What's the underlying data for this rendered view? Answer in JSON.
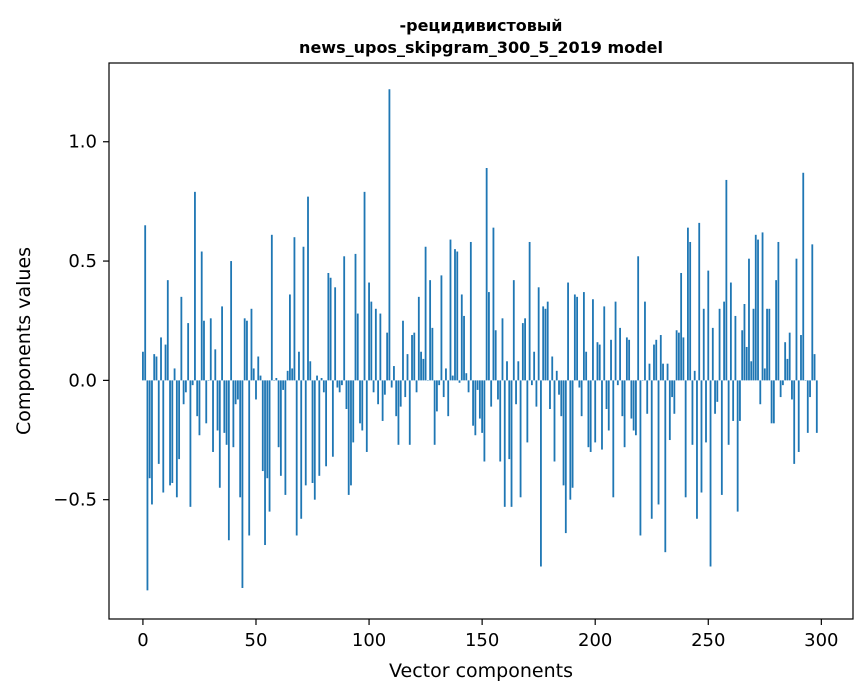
{
  "chart_data": {
    "type": "bar",
    "title_line1": "-рецидивистовый",
    "title_line2": "news_upos_skipgram_300_5_2019 model",
    "xlabel": "Vector components",
    "ylabel": "Components values",
    "xlim": [
      -15,
      314
    ],
    "ylim": [
      -1.0,
      1.33
    ],
    "xticks": [
      0,
      50,
      100,
      150,
      200,
      250,
      300
    ],
    "xtick_labels": [
      "0",
      "50",
      "100",
      "150",
      "200",
      "250",
      "300"
    ],
    "yticks": [
      -0.5,
      0.0,
      0.5,
      1.0
    ],
    "ytick_labels": [
      "−0.5",
      "0.0",
      "0.5",
      "1.0"
    ],
    "bar_color": "#1f77b4",
    "values": [
      0.12,
      0.65,
      -0.88,
      -0.41,
      -0.52,
      0.11,
      0.1,
      -0.35,
      0.18,
      -0.47,
      0.15,
      0.42,
      -0.44,
      -0.43,
      0.05,
      -0.49,
      -0.33,
      0.35,
      -0.1,
      -0.05,
      0.24,
      -0.53,
      -0.02,
      0.79,
      -0.15,
      -0.23,
      0.54,
      0.25,
      -0.18,
      0.0,
      0.26,
      -0.3,
      0.13,
      -0.21,
      -0.45,
      0.31,
      -0.22,
      -0.27,
      -0.67,
      0.5,
      -0.28,
      -0.1,
      -0.08,
      -0.49,
      -0.87,
      0.26,
      0.25,
      -0.65,
      0.3,
      0.05,
      -0.08,
      0.1,
      0.02,
      -0.38,
      -0.69,
      -0.41,
      -0.55,
      0.61,
      0.0,
      0.01,
      -0.28,
      -0.4,
      -0.04,
      -0.48,
      0.04,
      0.36,
      0.05,
      0.6,
      -0.65,
      0.12,
      -0.58,
      0.56,
      -0.44,
      0.77,
      0.08,
      -0.43,
      -0.5,
      0.02,
      -0.4,
      0.01,
      -0.05,
      -0.36,
      0.45,
      0.43,
      -0.32,
      0.39,
      -0.03,
      -0.05,
      -0.02,
      0.52,
      -0.12,
      -0.48,
      -0.44,
      -0.26,
      0.53,
      0.28,
      -0.18,
      -0.21,
      0.79,
      -0.3,
      0.41,
      0.33,
      -0.05,
      0.3,
      -0.1,
      0.28,
      -0.17,
      -0.06,
      0.2,
      1.22,
      -0.03,
      0.06,
      -0.15,
      -0.27,
      -0.11,
      0.25,
      -0.07,
      0.11,
      -0.27,
      0.19,
      0.2,
      -0.05,
      0.35,
      0.12,
      0.09,
      0.56,
      0.0,
      0.42,
      0.22,
      -0.27,
      -0.13,
      -0.02,
      0.44,
      -0.07,
      0.05,
      -0.15,
      0.59,
      0.02,
      0.55,
      0.54,
      -0.01,
      0.36,
      0.27,
      0.03,
      -0.05,
      0.58,
      -0.19,
      -0.23,
      -0.04,
      -0.16,
      -0.22,
      -0.34,
      0.89,
      0.37,
      -0.11,
      0.64,
      0.21,
      -0.08,
      -0.34,
      0.26,
      -0.53,
      0.08,
      -0.33,
      -0.53,
      0.42,
      -0.1,
      0.08,
      -0.49,
      0.24,
      0.26,
      -0.26,
      0.58,
      -0.02,
      0.12,
      -0.11,
      0.39,
      -0.78,
      0.31,
      0.3,
      0.33,
      -0.12,
      0.1,
      -0.34,
      0.04,
      -0.06,
      -0.15,
      -0.44,
      -0.64,
      0.41,
      -0.5,
      -0.45,
      0.36,
      0.35,
      -0.03,
      -0.15,
      0.37,
      0.12,
      -0.28,
      -0.3,
      0.34,
      -0.26,
      0.16,
      0.15,
      -0.29,
      0.31,
      -0.12,
      -0.21,
      0.17,
      -0.49,
      0.33,
      -0.02,
      0.22,
      -0.15,
      -0.28,
      0.18,
      0.17,
      -0.16,
      -0.21,
      -0.23,
      0.52,
      -0.65,
      0.0,
      0.33,
      -0.14,
      0.07,
      -0.58,
      0.15,
      0.17,
      -0.52,
      0.19,
      0.07,
      -0.72,
      0.07,
      -0.25,
      -0.07,
      -0.14,
      0.21,
      0.2,
      0.45,
      0.18,
      -0.49,
      0.64,
      0.58,
      -0.27,
      0.04,
      -0.58,
      0.66,
      -0.47,
      0.3,
      -0.26,
      0.46,
      -0.78,
      0.22,
      -0.14,
      -0.09,
      0.3,
      -0.48,
      0.33,
      0.84,
      -0.27,
      0.41,
      -0.17,
      0.27,
      -0.55,
      -0.17,
      0.21,
      0.32,
      0.14,
      0.51,
      0.08,
      0.3,
      0.61,
      0.59,
      -0.1,
      0.62,
      0.05,
      0.3,
      0.3,
      -0.18,
      -0.18,
      0.42,
      0.58,
      -0.07,
      -0.02,
      0.16,
      0.09,
      0.2,
      -0.08,
      -0.35,
      0.51,
      -0.3,
      0.19,
      0.87,
      0.0,
      -0.22,
      -0.07,
      0.57,
      0.11,
      -0.22
    ]
  }
}
